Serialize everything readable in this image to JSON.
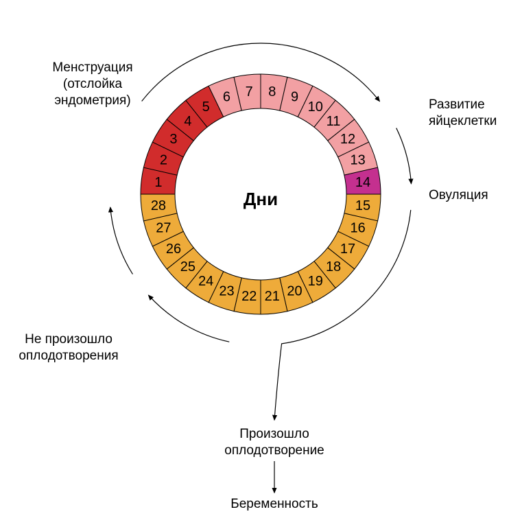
{
  "diagram": {
    "type": "infographic",
    "center_label": "Дни",
    "background_color": "#ffffff",
    "ring": {
      "outer_radius": 175,
      "inner_radius": 125,
      "stroke_color": "#000000",
      "stroke_width": 1,
      "day_font_size": 20
    },
    "phases": [
      {
        "name": "menstruation",
        "days": [
          1,
          2,
          3,
          4,
          5
        ],
        "color": "#d12c2c"
      },
      {
        "name": "follicular",
        "days": [
          6,
          7,
          8,
          9,
          10,
          11,
          12,
          13
        ],
        "color": "#f2a0a3"
      },
      {
        "name": "ovulation",
        "days": [
          14
        ],
        "color": "#c4308f"
      },
      {
        "name": "luteal",
        "days": [
          15,
          16,
          17,
          18,
          19,
          20,
          21,
          22,
          23,
          24,
          25,
          26,
          27,
          28
        ],
        "color": "#eeab3a"
      }
    ],
    "labels": {
      "menstruation_line1": "Менструация",
      "menstruation_line2": "(отслойка",
      "menstruation_line3": "эндометрия)",
      "follicular_line1": "Развитие",
      "follicular_line2": "яйцеклетки",
      "ovulation": "Овуляция",
      "no_fert_line1": "Не произошло",
      "no_fert_line2": "оплодотворения",
      "did_fert_line1": "Произошло",
      "did_fert_line2": "оплодотворение",
      "pregnancy": "Беременность"
    },
    "arcs": {
      "outer_radius": 220,
      "stroke_color": "#000000",
      "stroke_width": 1.2
    }
  }
}
